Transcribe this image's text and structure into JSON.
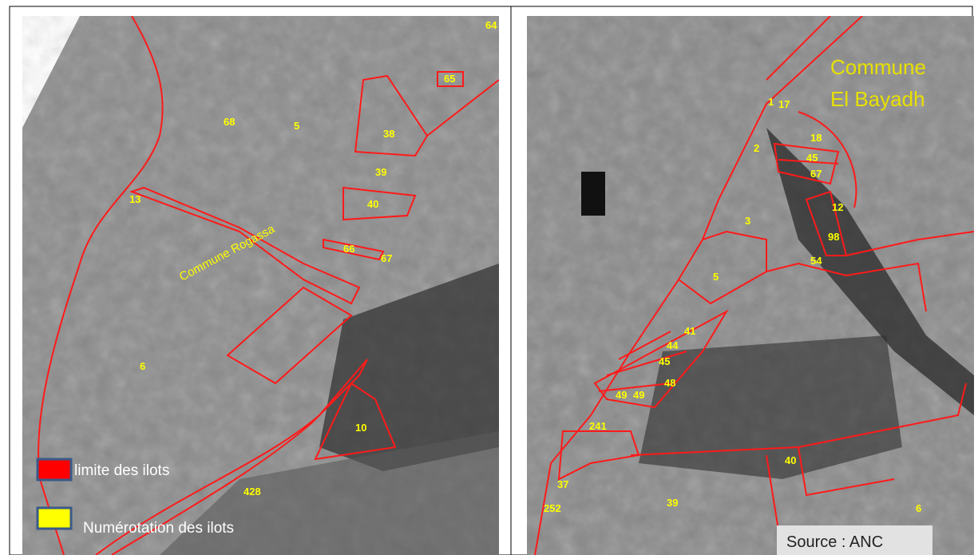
{
  "panels": [
    {
      "commune": "Commune Rogassa",
      "labels": [
        "64",
        "65",
        "68",
        "5",
        "38",
        "39",
        "13",
        "40",
        "66",
        "67",
        "6",
        "10",
        "428"
      ]
    },
    {
      "commune": [
        "Commune",
        "El Bayadh"
      ],
      "labels": [
        "1",
        "17",
        "18",
        "2",
        "45",
        "67",
        "12",
        "3",
        "98",
        "54",
        "5",
        "41",
        "44",
        "45",
        "48",
        "49",
        "49",
        "241",
        "40",
        "37",
        "252",
        "39",
        "6"
      ]
    }
  ],
  "legend": [
    "limite des ilots",
    "Numérotation des ilots"
  ],
  "source": "Source : ANC"
}
